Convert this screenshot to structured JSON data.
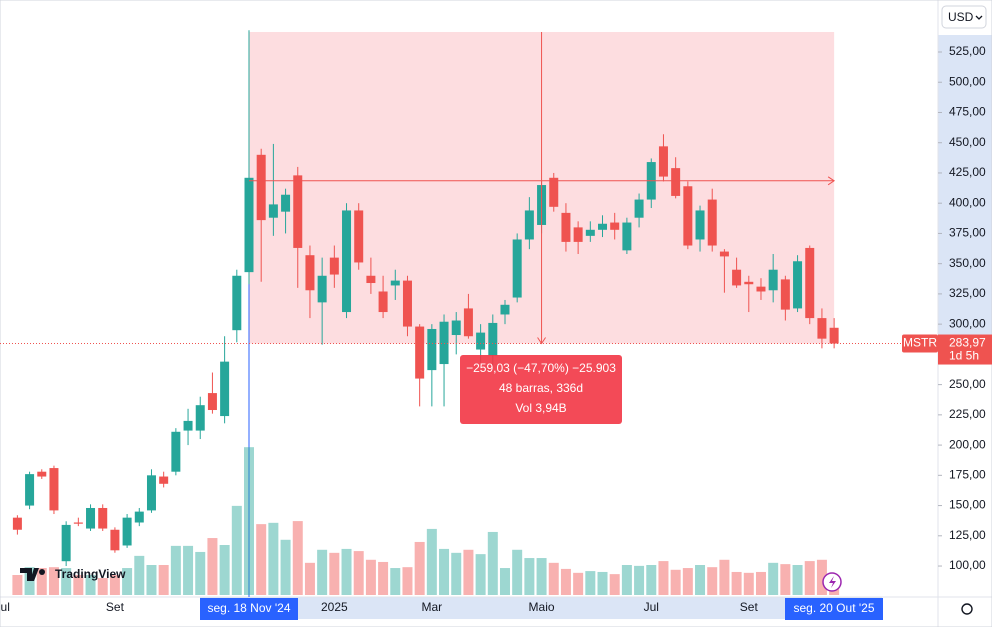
{
  "chart_data": {
    "type": "candlestick",
    "currency": "USD",
    "symbol": "MSTR",
    "last_price_label": "283,97",
    "countdown": "1d 5h",
    "up_color": "#26a69a",
    "down_color": "#ef5350",
    "ylim": [
      74.4,
      568
    ],
    "yticks": [
      {
        "value": 100,
        "label": "100,00"
      },
      {
        "value": 125,
        "label": "125,00"
      },
      {
        "value": 150,
        "label": "150,00"
      },
      {
        "value": 175,
        "label": "175,00"
      },
      {
        "value": 200,
        "label": "200,00"
      },
      {
        "value": 225,
        "label": "225,00"
      },
      {
        "value": 250,
        "label": "250,00"
      },
      {
        "value": 300,
        "label": "300,00"
      },
      {
        "value": 325,
        "label": "325,00"
      },
      {
        "value": 350,
        "label": "350,00"
      },
      {
        "value": 375,
        "label": "375,00"
      },
      {
        "value": 400,
        "label": "400,00"
      },
      {
        "value": 425,
        "label": "425,00"
      },
      {
        "value": 450,
        "label": "450,00"
      },
      {
        "value": 475,
        "label": "475,00"
      },
      {
        "value": 500,
        "label": "500,00"
      },
      {
        "value": 525,
        "label": "525,00"
      }
    ],
    "xtick_labels": [
      "ul",
      "Set",
      "2025",
      "Mar",
      "Maio",
      "Jul",
      "Set"
    ],
    "crosshair_labels": [
      "seg. 18 Nov '24",
      "seg. 20 Out '25"
    ],
    "measure": {
      "change": "−259,03 (−47,70%) −25.903",
      "bars": "48 barras, 336d",
      "volume": "Vol 3,94B"
    },
    "logo": "TradingView",
    "series": [
      {
        "name": "MSTR",
        "open": [
          140,
          150,
          178,
          181,
          104,
          136,
          131,
          148,
          130,
          117,
          136,
          146,
          174,
          178,
          212,
          212,
          243,
          224,
          295,
          343,
          440,
          388,
          393,
          423,
          357,
          318,
          355,
          310,
          394,
          340,
          327,
          332,
          336,
          298,
          262,
          267,
          291,
          313,
          279,
          274,
          308,
          322,
          370,
          382,
          421,
          392,
          380,
          373,
          378,
          384,
          361,
          388,
          403,
          447,
          429,
          414,
          370,
          403,
          360,
          345,
          335,
          331,
          328,
          337,
          313,
          363,
          305,
          297
        ],
        "high": [
          142,
          178,
          180,
          183,
          137,
          140,
          151,
          151,
          132,
          143,
          148,
          180,
          178,
          214,
          230,
          240,
          260,
          290,
          345,
          543,
          445,
          449,
          412,
          430,
          365,
          355,
          365,
          400,
          400,
          355,
          340,
          345,
          340,
          300,
          300,
          308,
          310,
          325,
          300,
          308,
          320,
          375,
          405,
          418,
          425,
          400,
          385,
          385,
          390,
          392,
          388,
          408,
          437,
          457,
          438,
          418,
          398,
          412,
          362,
          355,
          340,
          338,
          358,
          340,
          357,
          365,
          313,
          305
        ],
        "low": [
          126,
          147,
          172,
          143,
          100,
          133,
          129,
          129,
          111,
          115,
          133,
          144,
          165,
          175,
          200,
          205,
          226,
          218,
          285,
          333,
          335,
          373,
          375,
          330,
          305,
          283,
          330,
          305,
          345,
          325,
          305,
          320,
          290,
          232,
          232,
          232,
          275,
          288,
          268,
          265,
          300,
          318,
          362,
          375,
          393,
          360,
          358,
          368,
          372,
          370,
          358,
          380,
          396,
          418,
          404,
          362,
          360,
          360,
          326,
          330,
          310,
          320,
          318,
          303,
          310,
          300,
          280,
          280
        ],
        "close": [
          130,
          176,
          174,
          146,
          134,
          135,
          148,
          131,
          113,
          140,
          145,
          175,
          168,
          211,
          220,
          233,
          229,
          269,
          340,
          421,
          386,
          399,
          407,
          363,
          328,
          340,
          341,
          394,
          351,
          334,
          310,
          336,
          298,
          255,
          296,
          302,
          303,
          290,
          293,
          301,
          316,
          370,
          394,
          415,
          397,
          368,
          368,
          378,
          383,
          378,
          384,
          403,
          434,
          422,
          406,
          365,
          394,
          365,
          356,
          332,
          333,
          327,
          345,
          312,
          352,
          305,
          288,
          283.97
        ],
        "volume": [
          46,
          64,
          62,
          64,
          62,
          46,
          46,
          39,
          46,
          62,
          90,
          69,
          69,
          113,
          113,
          99,
          131,
          115,
          205,
          340,
          163,
          166,
          127,
          170,
          74,
          104,
          97,
          106,
          101,
          81,
          76,
          62,
          64,
          122,
          152,
          106,
          97,
          104,
          94,
          145,
          62,
          104,
          85,
          85,
          74,
          60,
          51,
          55,
          53,
          48,
          69,
          67,
          69,
          78,
          58,
          62,
          69,
          64,
          81,
          53,
          51,
          53,
          74,
          71,
          69,
          78,
          81,
          40
        ]
      }
    ]
  }
}
